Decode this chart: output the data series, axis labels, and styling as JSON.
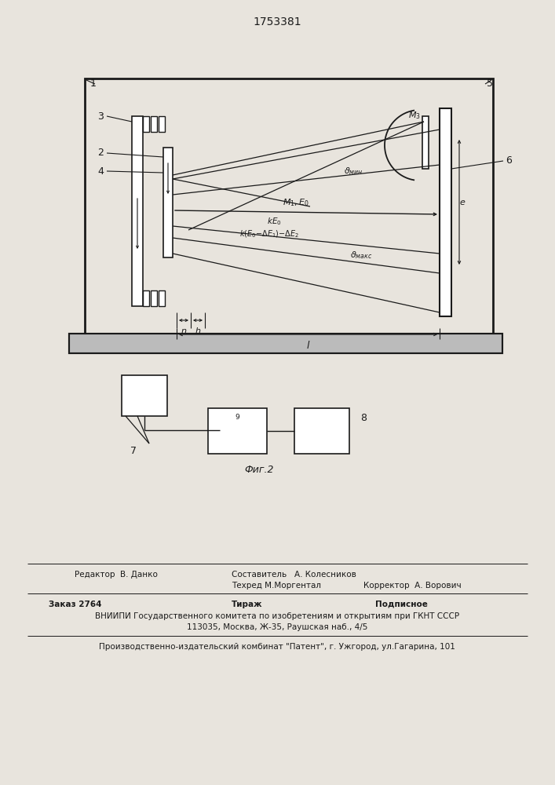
{
  "title": "1753381",
  "bg_color": "#e8e4dd",
  "line_color": "#1a1a1a",
  "fig_caption": "Фиг.2",
  "footer": {
    "editor": "Редактор  В. Данко",
    "comp": "Составитель   А. Колесников",
    "tech": "Техред М.Моргентал",
    "corr": "Корректор  А. Ворович",
    "order": "Заказ 2764",
    "tirazh": "Тираж",
    "podp": "Подписное",
    "vniipmi": "ВНИИПИ Государственного комитета по изобретениям и открытиям при ГКНТ СССР",
    "addr": "113035, Москва, Ж-35, Раушская наб., 4/5",
    "publisher": "Производственно-издательский комбинат \"Патент\", г. Ужгород, ул.Гагарина, 101"
  }
}
